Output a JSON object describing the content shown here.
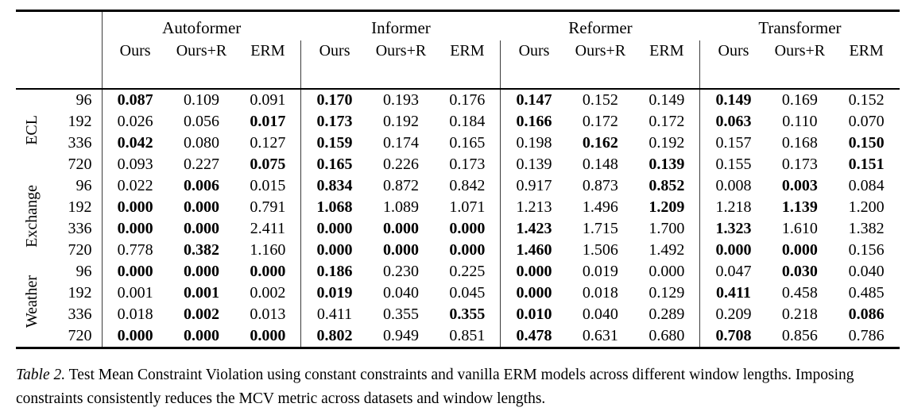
{
  "page": {
    "background": "#ffffff",
    "text_color": "#000000"
  },
  "table": {
    "model_groups": [
      "Autoformer",
      "Informer",
      "Reformer",
      "Transformer"
    ],
    "sub_columns": [
      "Ours",
      "Ours+R",
      "ERM"
    ],
    "row_groups": [
      {
        "label": "ECL",
        "rows": [
          {
            "window": "96",
            "values": [
              "0.087",
              "0.109",
              "0.091",
              "0.170",
              "0.193",
              "0.176",
              "0.147",
              "0.152",
              "0.149",
              "0.149",
              "0.169",
              "0.152"
            ],
            "bold": [
              1,
              0,
              0,
              1,
              0,
              0,
              1,
              0,
              0,
              1,
              0,
              0
            ]
          },
          {
            "window": "192",
            "values": [
              "0.026",
              "0.056",
              "0.017",
              "0.173",
              "0.192",
              "0.184",
              "0.166",
              "0.172",
              "0.172",
              "0.063",
              "0.110",
              "0.070"
            ],
            "bold": [
              0,
              0,
              1,
              1,
              0,
              0,
              1,
              0,
              0,
              1,
              0,
              0
            ]
          },
          {
            "window": "336",
            "values": [
              "0.042",
              "0.080",
              "0.127",
              "0.159",
              "0.174",
              "0.165",
              "0.198",
              "0.162",
              "0.192",
              "0.157",
              "0.168",
              "0.150"
            ],
            "bold": [
              1,
              0,
              0,
              1,
              0,
              0,
              0,
              1,
              0,
              0,
              0,
              1
            ]
          },
          {
            "window": "720",
            "values": [
              "0.093",
              "0.227",
              "0.075",
              "0.165",
              "0.226",
              "0.173",
              "0.139",
              "0.148",
              "0.139",
              "0.155",
              "0.173",
              "0.151"
            ],
            "bold": [
              0,
              0,
              1,
              1,
              0,
              0,
              0,
              0,
              1,
              0,
              0,
              1
            ]
          }
        ]
      },
      {
        "label": "Exchange",
        "rows": [
          {
            "window": "96",
            "values": [
              "0.022",
              "0.006",
              "0.015",
              "0.834",
              "0.872",
              "0.842",
              "0.917",
              "0.873",
              "0.852",
              "0.008",
              "0.003",
              "0.084"
            ],
            "bold": [
              0,
              1,
              0,
              1,
              0,
              0,
              0,
              0,
              1,
              0,
              1,
              0
            ]
          },
          {
            "window": "192",
            "values": [
              "0.000",
              "0.000",
              "0.791",
              "1.068",
              "1.089",
              "1.071",
              "1.213",
              "1.496",
              "1.209",
              "1.218",
              "1.139",
              "1.200"
            ],
            "bold": [
              1,
              1,
              0,
              1,
              0,
              0,
              0,
              0,
              1,
              0,
              1,
              0
            ]
          },
          {
            "window": "336",
            "values": [
              "0.000",
              "0.000",
              "2.411",
              "0.000",
              "0.000",
              "0.000",
              "1.423",
              "1.715",
              "1.700",
              "1.323",
              "1.610",
              "1.382"
            ],
            "bold": [
              1,
              1,
              0,
              1,
              1,
              1,
              1,
              0,
              0,
              1,
              0,
              0
            ]
          },
          {
            "window": "720",
            "values": [
              "0.778",
              "0.382",
              "1.160",
              "0.000",
              "0.000",
              "0.000",
              "1.460",
              "1.506",
              "1.492",
              "0.000",
              "0.000",
              "0.156"
            ],
            "bold": [
              0,
              1,
              0,
              1,
              1,
              1,
              1,
              0,
              0,
              1,
              1,
              0
            ]
          }
        ]
      },
      {
        "label": "Weather",
        "rows": [
          {
            "window": "96",
            "values": [
              "0.000",
              "0.000",
              "0.000",
              "0.186",
              "0.230",
              "0.225",
              "0.000",
              "0.019",
              "0.000",
              "0.047",
              "0.030",
              "0.040"
            ],
            "bold": [
              1,
              1,
              1,
              1,
              0,
              0,
              1,
              0,
              0,
              0,
              1,
              0
            ]
          },
          {
            "window": "192",
            "values": [
              "0.001",
              "0.001",
              "0.002",
              "0.019",
              "0.040",
              "0.045",
              "0.000",
              "0.018",
              "0.129",
              "0.411",
              "0.458",
              "0.485"
            ],
            "bold": [
              0,
              1,
              0,
              1,
              0,
              0,
              1,
              0,
              0,
              1,
              0,
              0
            ]
          },
          {
            "window": "336",
            "values": [
              "0.018",
              "0.002",
              "0.013",
              "0.411",
              "0.355",
              "0.355",
              "0.010",
              "0.040",
              "0.289",
              "0.209",
              "0.218",
              "0.086"
            ],
            "bold": [
              0,
              1,
              0,
              0,
              0,
              1,
              1,
              0,
              0,
              0,
              0,
              1
            ]
          },
          {
            "window": "720",
            "values": [
              "0.000",
              "0.000",
              "0.000",
              "0.802",
              "0.949",
              "0.851",
              "0.478",
              "0.631",
              "0.680",
              "0.708",
              "0.856",
              "0.786"
            ],
            "bold": [
              1,
              1,
              1,
              1,
              0,
              0,
              1,
              0,
              0,
              1,
              0,
              0
            ]
          }
        ]
      }
    ]
  },
  "caption": {
    "label": "Table 2.",
    "text": "Test Mean Constraint Violation using constant constraints and vanilla ERM models across different window lengths. Imposing constraints consistently reduces the MCV metric across datasets and window lengths."
  }
}
